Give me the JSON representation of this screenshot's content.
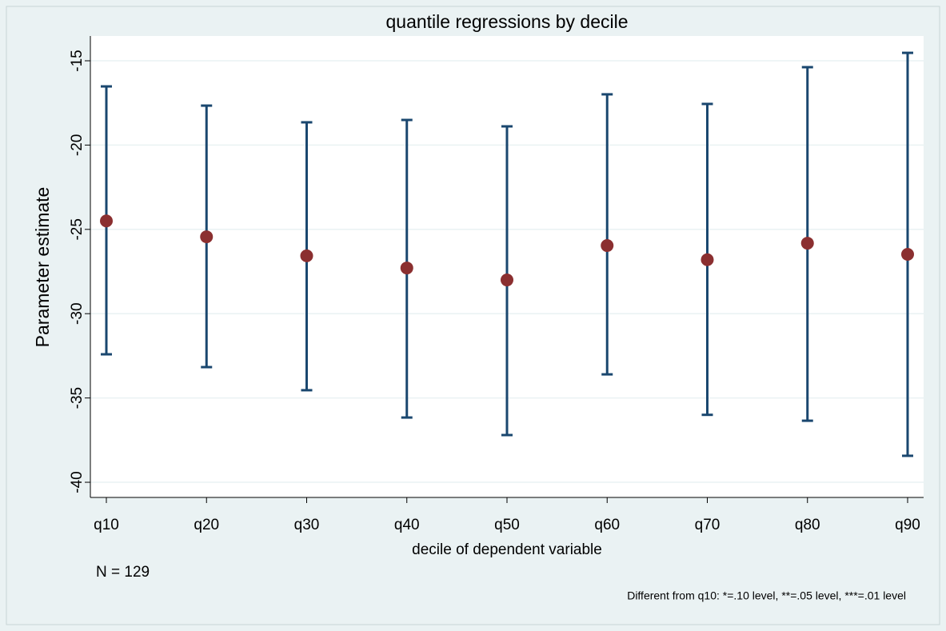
{
  "chart_data": {
    "type": "errorbar",
    "title": "quantile regressions by decile",
    "x_label": "decile of dependent variable",
    "y_label": "Parameter estimate",
    "note": "N = 129",
    "caption": "Different from q10: *=.10 level, **=.05 level, ***=.01 level",
    "categories": [
      "q10",
      "q20",
      "q30",
      "q40",
      "q50",
      "q60",
      "q70",
      "q80",
      "q90"
    ],
    "series": [
      {
        "color": "#8b2f30",
        "bar_color": "#1a476f",
        "values": [
          -24.5,
          -25.44,
          -26.57,
          -27.29,
          -28.0,
          -25.96,
          -26.8,
          -25.82,
          -26.48
        ],
        "upper": [
          -16.52,
          -17.66,
          -18.65,
          -18.51,
          -18.89,
          -16.99,
          -17.56,
          -15.38,
          -14.53
        ],
        "lower": [
          -32.41,
          -33.17,
          -34.54,
          -36.16,
          -37.2,
          -33.6,
          -36.0,
          -36.35,
          -38.43
        ]
      }
    ],
    "ylim": [
      -40.9,
      -13.53
    ],
    "yticks": [
      -15,
      -20,
      -25,
      -30,
      -35,
      -40
    ],
    "grid": true
  }
}
